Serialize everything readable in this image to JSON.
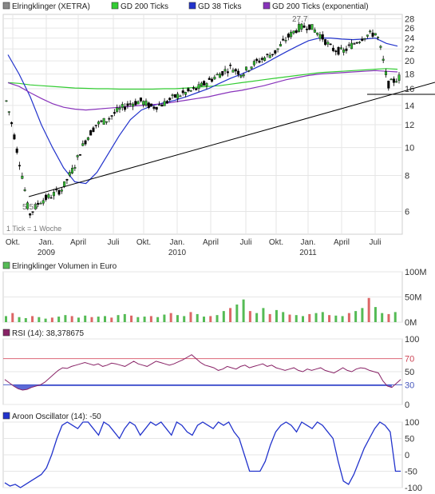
{
  "legend_main": [
    {
      "label": "Elringklinger (XETRA)",
      "color": "#888888"
    },
    {
      "label": "GD 200 Ticks",
      "color": "#33cc33"
    },
    {
      "label": "GD 38 Ticks",
      "color": "#2233cc"
    },
    {
      "label": "GD 200 Ticks (exponential)",
      "color": "#8833bb"
    }
  ],
  "annotations": {
    "high": "27,7",
    "low": "5,55",
    "tick_note": "1 Tick = 1 Woche"
  },
  "x_ticks": [
    "Okt.",
    "Jan.",
    "April",
    "Juli",
    "Okt.",
    "Jan.",
    "April",
    "Juli",
    "Okt.",
    "Jan.",
    "April",
    "Juli"
  ],
  "year_labels": [
    "2009",
    "2010",
    "2011"
  ],
  "panels": {
    "volume": {
      "legend": "Elringklinger Volumen in Euro",
      "y_ticks": [
        "100M",
        "50M",
        "0M"
      ]
    },
    "rsi": {
      "legend": "RSI (14): 38,378675",
      "y_ticks": [
        "100",
        "70",
        "50",
        "30",
        "0"
      ]
    },
    "aroon": {
      "legend": "Aroon Oscillator (14): -50",
      "y_ticks": [
        "100",
        "50",
        "0",
        "-50",
        "-100"
      ]
    }
  },
  "chart_data": [
    {
      "type": "line",
      "title": "Elringklinger (XETRA)",
      "y_scale": "log",
      "y_ticks": [
        6,
        8,
        10,
        12,
        14,
        16,
        18,
        20,
        22,
        24,
        26,
        28
      ],
      "ylim": [
        5,
        29
      ],
      "x": [
        "2008-10",
        "2008-11",
        "2008-12",
        "2009-01",
        "2009-02",
        "2009-03",
        "2009-04",
        "2009-05",
        "2009-06",
        "2009-07",
        "2009-08",
        "2009-09",
        "2009-10",
        "2009-11",
        "2009-12",
        "2010-01",
        "2010-02",
        "2010-03",
        "2010-04",
        "2010-05",
        "2010-06",
        "2010-07",
        "2010-08",
        "2010-09",
        "2010-10",
        "2010-11",
        "2010-12",
        "2011-01",
        "2011-02",
        "2011-03",
        "2011-04",
        "2011-05",
        "2011-06",
        "2011-07",
        "2011-08",
        "2011-09"
      ],
      "series": [
        {
          "name": "Elringklinger (XETRA)",
          "values": [
            14.5,
            9.5,
            5.8,
            6.5,
            6.8,
            7.2,
            8.5,
            10.5,
            12,
            12.5,
            13.5,
            14.2,
            14.5,
            13.8,
            14.2,
            15,
            15.5,
            16,
            17,
            18,
            19,
            18,
            19.5,
            20.5,
            21.5,
            24,
            26,
            26.5,
            24.5,
            22,
            21.5,
            23,
            24.5,
            25,
            16.5,
            17.5
          ]
        },
        {
          "name": "GD 200 Ticks",
          "values": [
            16.8,
            16.7,
            16.5,
            16.4,
            16.3,
            16.2,
            16.1,
            16.05,
            16,
            16,
            15.95,
            15.95,
            15.95,
            15.95,
            16,
            16,
            16.1,
            16.2,
            16.3,
            16.4,
            16.6,
            16.8,
            17,
            17.2,
            17.4,
            17.6,
            17.8,
            18,
            18.2,
            18.3,
            18.4,
            18.5,
            18.6,
            18.7,
            18.8,
            18.7
          ]
        },
        {
          "name": "GD 38 Ticks",
          "values": [
            21,
            18,
            15,
            12,
            10,
            8.5,
            7.6,
            7.5,
            8.2,
            9.5,
            11,
            12.5,
            13.5,
            14,
            14.3,
            14.6,
            15,
            15.5,
            16,
            16.7,
            17.4,
            18,
            18.7,
            19.5,
            20.5,
            21.5,
            22.5,
            23.5,
            24,
            24,
            23.8,
            23.7,
            23.8,
            24,
            23,
            22.5
          ]
        },
        {
          "name": "GD 200 Ticks (exponential)",
          "values": [
            16.8,
            16.3,
            15.5,
            14.8,
            14.2,
            13.8,
            13.6,
            13.5,
            13.6,
            13.7,
            13.8,
            13.9,
            14,
            14.1,
            14.2,
            14.4,
            14.6,
            14.8,
            15,
            15.3,
            15.6,
            15.8,
            16.1,
            16.4,
            16.8,
            17.2,
            17.5,
            17.8,
            18,
            18.1,
            18.2,
            18.3,
            18.4,
            18.5,
            18.4,
            18.3
          ]
        }
      ]
    },
    {
      "type": "bar",
      "title": "Elringklinger Volumen in Euro",
      "ylabel": "",
      "y_ticks": [
        "0M",
        "50M",
        "100M"
      ],
      "ylim": [
        0,
        100
      ],
      "values": [
        12,
        18,
        10,
        8,
        12,
        10,
        7,
        9,
        11,
        14,
        12,
        9,
        13,
        10,
        11,
        12,
        9,
        14,
        16,
        13,
        10,
        11,
        12,
        10,
        15,
        18,
        14,
        12,
        20,
        16,
        11,
        12,
        14,
        22,
        28,
        35,
        45,
        22,
        18,
        28,
        16,
        24,
        20,
        15,
        14,
        12,
        16,
        18,
        20,
        14,
        13,
        12,
        18,
        22,
        28,
        48,
        30,
        18,
        16,
        20
      ],
      "colors": [
        "up",
        "down"
      ],
      "up_color": "#55bb55",
      "down_color": "#dd6666"
    },
    {
      "type": "line",
      "title": "RSI (14): 38,378675",
      "ylim": [
        0,
        100
      ],
      "y_ticks": [
        0,
        30,
        50,
        70,
        100
      ],
      "series": [
        {
          "name": "RSI (14)",
          "values": [
            38,
            33,
            28,
            24,
            22,
            23,
            26,
            28,
            30,
            34,
            40,
            46,
            52,
            56,
            55,
            58,
            60,
            62,
            64,
            62,
            60,
            62,
            58,
            60,
            63,
            62,
            60,
            58,
            62,
            66,
            62,
            60,
            58,
            62,
            66,
            64,
            62,
            60,
            62,
            65,
            68,
            72,
            76,
            70,
            64,
            60,
            58,
            56,
            52,
            54,
            58,
            56,
            54,
            58,
            60,
            56,
            58,
            60,
            62,
            58,
            60,
            56,
            54,
            52,
            54,
            56,
            52,
            50,
            54,
            52,
            54,
            56,
            52,
            50,
            48,
            52,
            56,
            52,
            50,
            54,
            56,
            55,
            52,
            50,
            48,
            36,
            28,
            26,
            32,
            38
          ]
        }
      ],
      "reference_lines": [
        70,
        30
      ]
    },
    {
      "type": "line",
      "title": "Aroon Oscillator (14): -50",
      "ylim": [
        -100,
        100
      ],
      "y_ticks": [
        -100,
        -50,
        0,
        50,
        100
      ],
      "series": [
        {
          "name": "Aroon Oscillator (14)",
          "values": [
            -85,
            -95,
            -90,
            -100,
            -90,
            -80,
            -70,
            -60,
            -40,
            0,
            50,
            90,
            100,
            90,
            80,
            100,
            100,
            80,
            60,
            100,
            90,
            70,
            50,
            80,
            100,
            90,
            60,
            80,
            100,
            90,
            100,
            80,
            60,
            100,
            90,
            70,
            60,
            90,
            100,
            90,
            80,
            100,
            90,
            100,
            70,
            50,
            0,
            -50,
            -50,
            -50,
            -20,
            30,
            70,
            90,
            100,
            90,
            70,
            100,
            90,
            80,
            100,
            90,
            70,
            50,
            -20,
            -80,
            -90,
            -60,
            -20,
            20,
            50,
            80,
            100,
            90,
            70,
            -50,
            -50
          ]
        }
      ]
    }
  ]
}
